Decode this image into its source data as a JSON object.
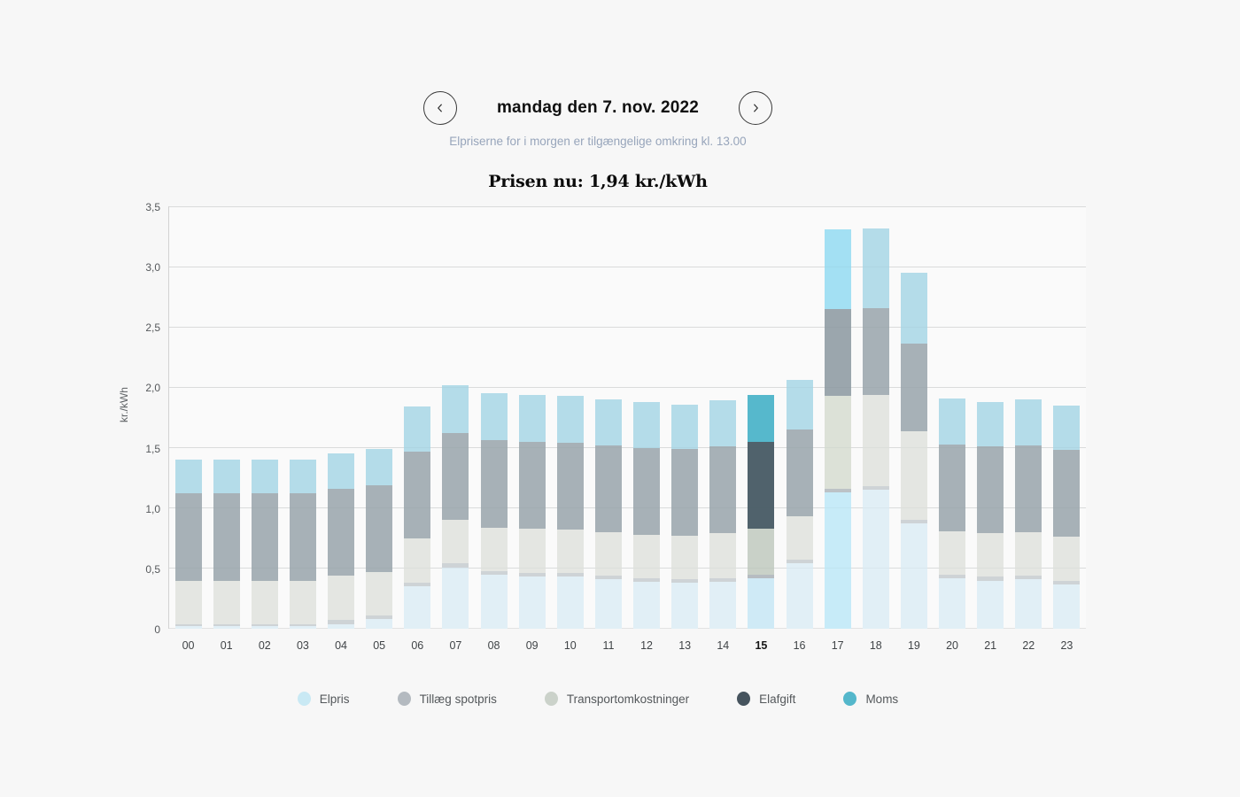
{
  "header": {
    "date_label": "mandag den 7. nov. 2022",
    "subtitle": "Elpriserne for i morgen er tilgængelige omkring kl. 13.00",
    "price_now_label": "Prisen nu: 1,94 kr./kWh"
  },
  "chart_data": {
    "type": "bar",
    "stacked": true,
    "title": "Prisen nu: 1,94 kr./kWh",
    "ylabel": "kr./kWh",
    "ylim": [
      0,
      3.5
    ],
    "grid": true,
    "legend_position": "bottom",
    "yticks": [
      {
        "value": 0,
        "label": "0"
      },
      {
        "value": 0.5,
        "label": "0,5"
      },
      {
        "value": 1.0,
        "label": "1,0"
      },
      {
        "value": 1.5,
        "label": "1,5"
      },
      {
        "value": 2.0,
        "label": "2,0"
      },
      {
        "value": 2.5,
        "label": "2,5"
      },
      {
        "value": 3.0,
        "label": "3,0"
      },
      {
        "value": 3.5,
        "label": "3,5"
      }
    ],
    "categories": [
      "00",
      "01",
      "02",
      "03",
      "04",
      "05",
      "06",
      "07",
      "08",
      "09",
      "10",
      "11",
      "12",
      "13",
      "14",
      "15",
      "16",
      "17",
      "18",
      "19",
      "20",
      "21",
      "22",
      "23"
    ],
    "current_hour": "15",
    "hover_hour": "17",
    "series": [
      {
        "key": "elpris",
        "name": "Elpris",
        "values": [
          0.02,
          0.02,
          0.02,
          0.02,
          0.04,
          0.08,
          0.35,
          0.51,
          0.45,
          0.43,
          0.43,
          0.41,
          0.39,
          0.38,
          0.39,
          0.42,
          0.54,
          1.13,
          1.15,
          0.87,
          0.42,
          0.4,
          0.41,
          0.37
        ]
      },
      {
        "key": "tillaeg",
        "name": "Tillæg spotpris",
        "values": [
          0.02,
          0.02,
          0.02,
          0.02,
          0.03,
          0.03,
          0.03,
          0.03,
          0.03,
          0.03,
          0.03,
          0.03,
          0.03,
          0.03,
          0.03,
          0.03,
          0.03,
          0.03,
          0.03,
          0.03,
          0.03,
          0.03,
          0.03,
          0.03
        ]
      },
      {
        "key": "transport",
        "name": "Transportomkostninger",
        "values": [
          0.36,
          0.36,
          0.36,
          0.36,
          0.37,
          0.36,
          0.37,
          0.36,
          0.36,
          0.37,
          0.36,
          0.36,
          0.36,
          0.36,
          0.37,
          0.38,
          0.36,
          0.77,
          0.76,
          0.74,
          0.36,
          0.36,
          0.36,
          0.36
        ]
      },
      {
        "key": "elafgift",
        "name": "Elafgift",
        "values": [
          0.72,
          0.72,
          0.72,
          0.72,
          0.72,
          0.72,
          0.72,
          0.72,
          0.72,
          0.72,
          0.72,
          0.72,
          0.72,
          0.72,
          0.72,
          0.72,
          0.72,
          0.72,
          0.72,
          0.72,
          0.72,
          0.72,
          0.72,
          0.72
        ]
      },
      {
        "key": "moms",
        "name": "Moms",
        "values": [
          0.28,
          0.28,
          0.28,
          0.28,
          0.29,
          0.3,
          0.37,
          0.4,
          0.39,
          0.39,
          0.39,
          0.38,
          0.38,
          0.37,
          0.38,
          0.39,
          0.41,
          0.66,
          0.66,
          0.59,
          0.38,
          0.37,
          0.38,
          0.37
        ]
      }
    ]
  },
  "colors": {
    "accent_teal": "#54b7cb",
    "subtitle_text": "#97a5bb",
    "series_muted": {
      "elpris": "#e1eff6",
      "tillaeg": "#ced3d6",
      "transport": "#e4e6e2",
      "elafgift": "#a7b1b7",
      "moms": "#b4dce9"
    },
    "series_current": {
      "elpris": "#cfeaf6",
      "tillaeg": "#b6bcc1",
      "transport": "#c9d1c8",
      "elafgift": "#50626c",
      "moms": "#56b8cc"
    },
    "series_hover": {
      "elpris": "#c7ebf8",
      "tillaeg": "#bcc2c6",
      "transport": "#dce1d7",
      "elafgift": "#9ba6ad",
      "moms": "#a3e0f3"
    },
    "series_legend": {
      "elpris": "#c9e9f4",
      "tillaeg": "#b4bac0",
      "transport": "#cbd2ca",
      "elafgift": "#46545e",
      "moms": "#54b7cb"
    }
  }
}
